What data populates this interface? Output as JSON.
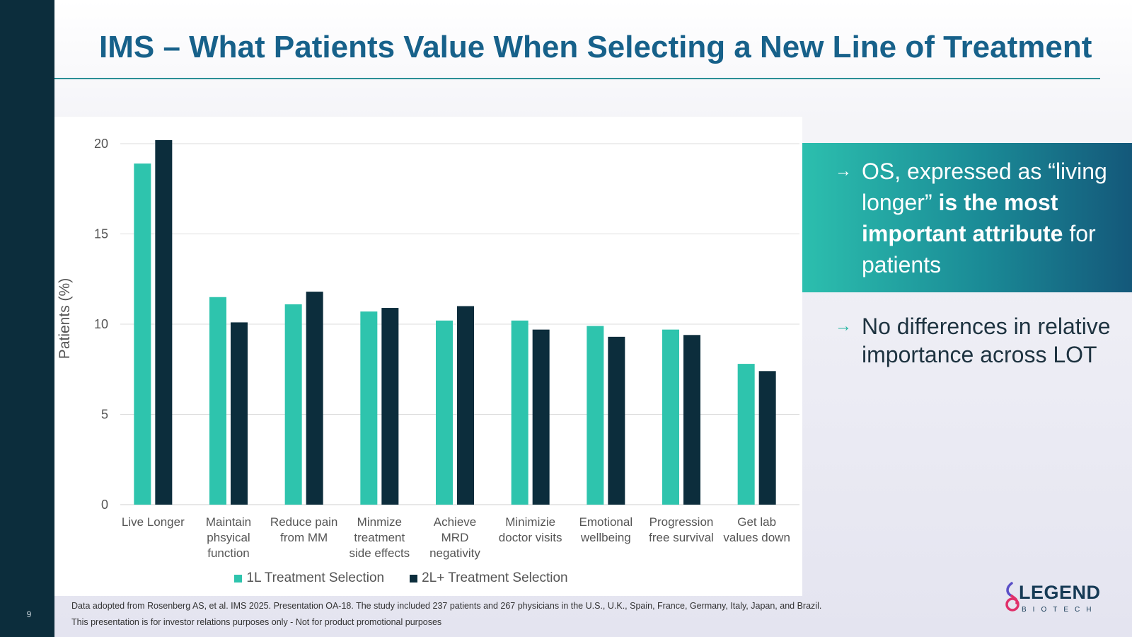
{
  "page": {
    "number": "9"
  },
  "title": "IMS – What Patients Value When Selecting a New Line of Treatment",
  "colors": {
    "series1": "#2ec4ad",
    "series2": "#0c2d3c",
    "title": "#17618a",
    "sidebar": "#0c2d3c"
  },
  "callout": {
    "bullet1": {
      "arrow_icon": "arrow-right-icon",
      "pre": "OS, expressed as “living longer” ",
      "bold": "is the most important attribute",
      "post": " for patients"
    },
    "bullet2": {
      "arrow_icon": "arrow-right-icon",
      "text": "No differences in relative importance across LOT"
    }
  },
  "footnotes": {
    "line1": "Data adopted from Rosenberg AS, et al. IMS 2025. Presentation OA-18. The study included 237 patients and 267 physicians in the U.S., U.K., Spain, France, Germany, Italy, Japan, and Brazil.",
    "line2": "This presentation is for investor relations purposes only - Not for product promotional purposes"
  },
  "logo": {
    "name": "LEGEND",
    "sub": "BIOTECH"
  },
  "chart_data": {
    "type": "bar",
    "ylabel": "Patients (%)",
    "xlabel": "",
    "ylim": [
      0,
      20
    ],
    "yticks": [
      0,
      5,
      10,
      15,
      20
    ],
    "grid": true,
    "legend_position": "bottom",
    "categories": [
      [
        "Live Longer"
      ],
      [
        "Maintain",
        "phsyical",
        "function"
      ],
      [
        "Reduce pain",
        "from MM"
      ],
      [
        "Minmize",
        "treatment",
        "side effects"
      ],
      [
        "Achieve",
        "MRD",
        "negativity"
      ],
      [
        "Minimizie",
        "doctor visits"
      ],
      [
        "Emotional",
        "wellbeing"
      ],
      [
        "Progression",
        "free survival"
      ],
      [
        "Get lab",
        "values down"
      ]
    ],
    "series": [
      {
        "name": "1L Treatment Selection",
        "values": [
          18.9,
          11.5,
          11.1,
          10.7,
          10.2,
          10.2,
          9.9,
          9.7,
          7.8
        ]
      },
      {
        "name": "2L+ Treatment Selection",
        "values": [
          20.2,
          10.1,
          11.8,
          10.9,
          11.0,
          9.7,
          9.3,
          9.4,
          7.4
        ]
      }
    ]
  }
}
